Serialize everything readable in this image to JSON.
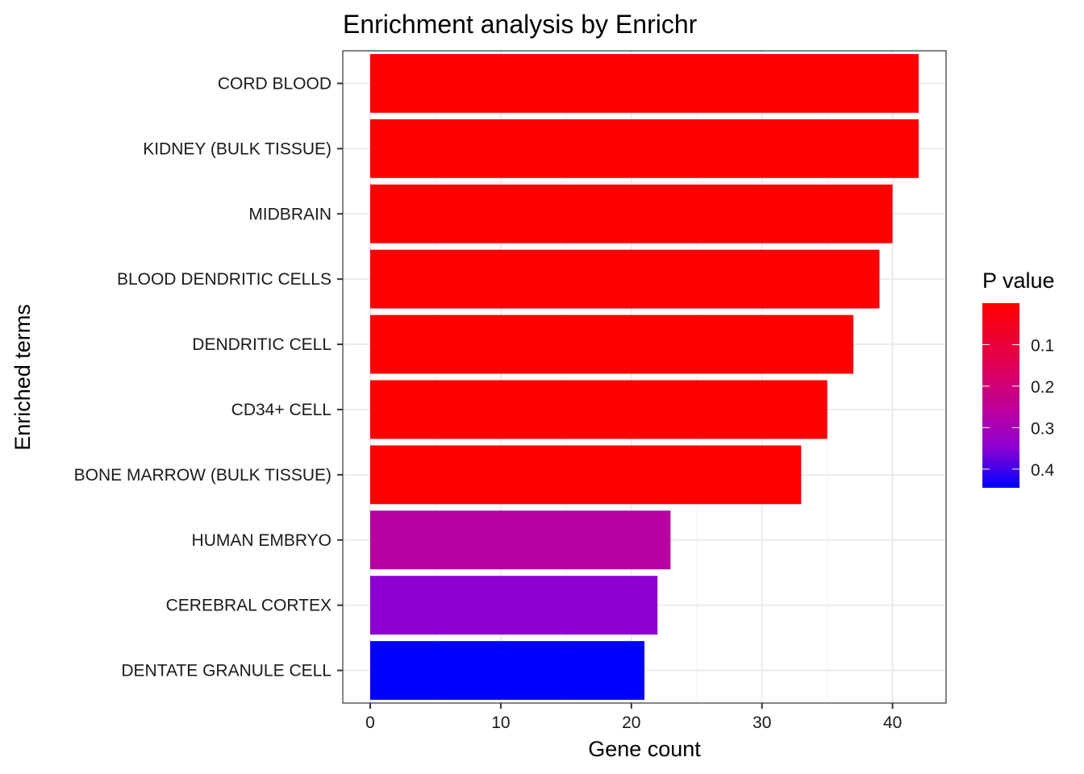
{
  "chart_data": {
    "type": "bar",
    "orientation": "horizontal",
    "title": "Enrichment analysis by Enrichr",
    "xlabel": "Gene count",
    "ylabel": "Enriched terms",
    "categories": [
      "CORD BLOOD",
      "KIDNEY (BULK TISSUE)",
      "MIDBRAIN",
      "BLOOD DENDRITIC CELLS",
      "DENDRITIC CELL",
      "CD34+ CELL",
      "BONE MARROW (BULK TISSUE)",
      "HUMAN EMBRYO",
      "CEREBRAL CORTEX",
      "DENTATE GRANULE CELL"
    ],
    "values": [
      42,
      42,
      40,
      39,
      37,
      35,
      33,
      23,
      22,
      21
    ],
    "p_values": [
      0.001,
      0.001,
      0.001,
      0.001,
      0.001,
      0.001,
      0.001,
      0.25,
      0.33,
      0.445
    ],
    "bar_colors": [
      "#FF0000",
      "#FF0000",
      "#FF0000",
      "#FF0000",
      "#FF0000",
      "#FF0000",
      "#FF0000",
      "#B800A3",
      "#8E00D2",
      "#0000FF"
    ],
    "xlim": [
      -2.1,
      44.1
    ],
    "xticks": [
      0,
      10,
      20,
      30,
      40
    ],
    "xtick_labels": [
      "0",
      "10",
      "20",
      "30",
      "40"
    ],
    "grid": true,
    "legend": {
      "title": "P value",
      "placement": "right",
      "range": [
        0.0,
        0.445
      ],
      "ticks": [
        0.1,
        0.2,
        0.3,
        0.4
      ],
      "tick_labels": [
        "0.1",
        "0.2",
        "0.3",
        "0.4"
      ],
      "low_color": "#FF0000",
      "high_color": "#0000FF"
    }
  }
}
